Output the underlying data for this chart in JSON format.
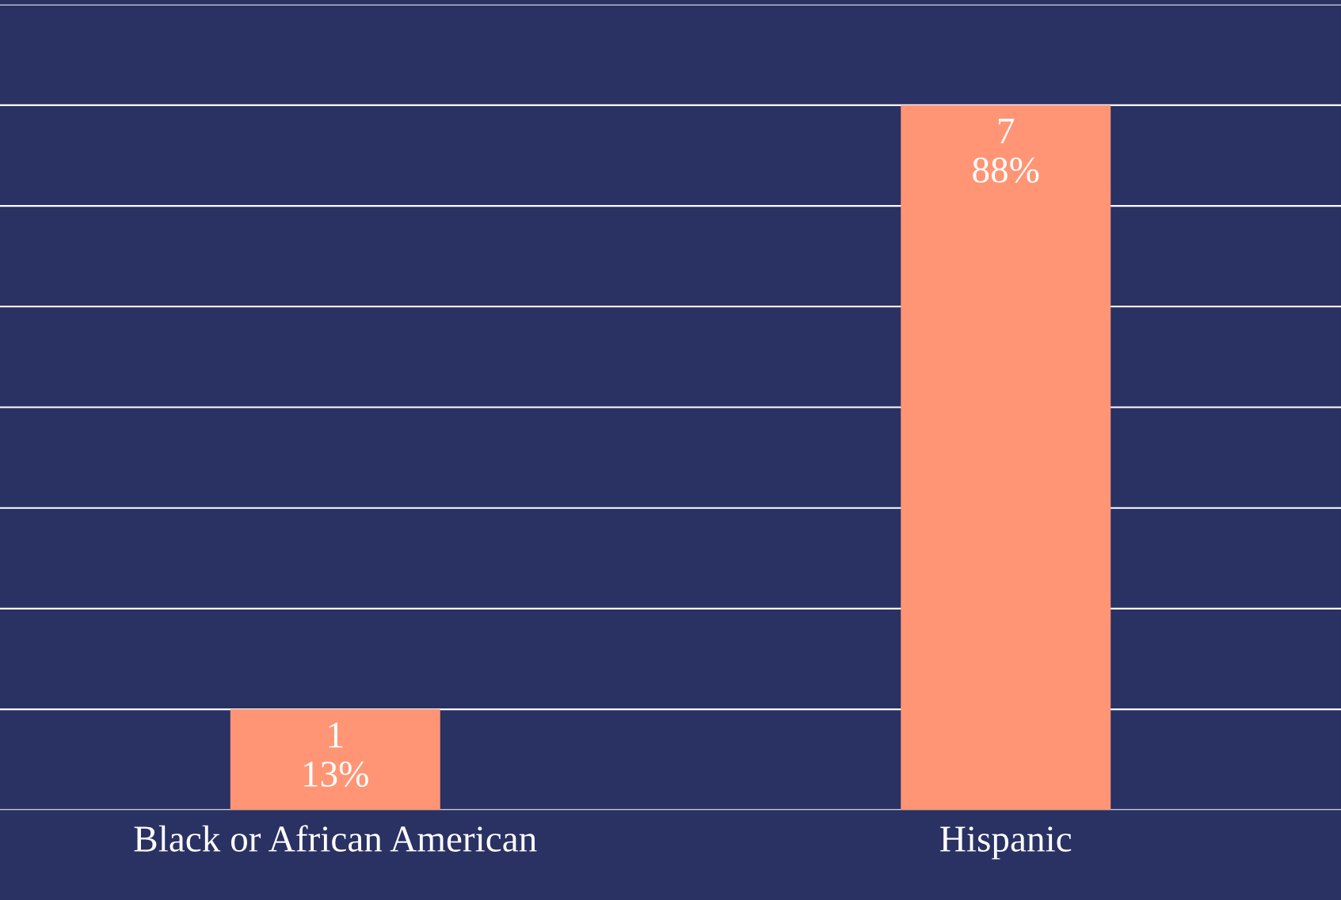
{
  "chart_data": {
    "type": "bar",
    "categories": [
      "Black or African American",
      "Hispanic"
    ],
    "values": [
      1,
      7
    ],
    "color": "#ff9575",
    "value_labels": [
      "1\n13%",
      "7\n88%"
    ],
    "ylim": [
      0,
      8
    ],
    "yticks": [
      {
        "value": 0,
        "label": null
      },
      {
        "value": 1,
        "label": null
      },
      {
        "value": 2,
        "label": null
      },
      {
        "value": 3,
        "label": null
      },
      {
        "value": 4,
        "label": null
      },
      {
        "value": 5,
        "label": null
      },
      {
        "value": 6,
        "label": null
      },
      {
        "value": 7,
        "label": null
      },
      {
        "value": 8,
        "label": null
      }
    ],
    "grid": "y",
    "tick_labels": "x"
  }
}
